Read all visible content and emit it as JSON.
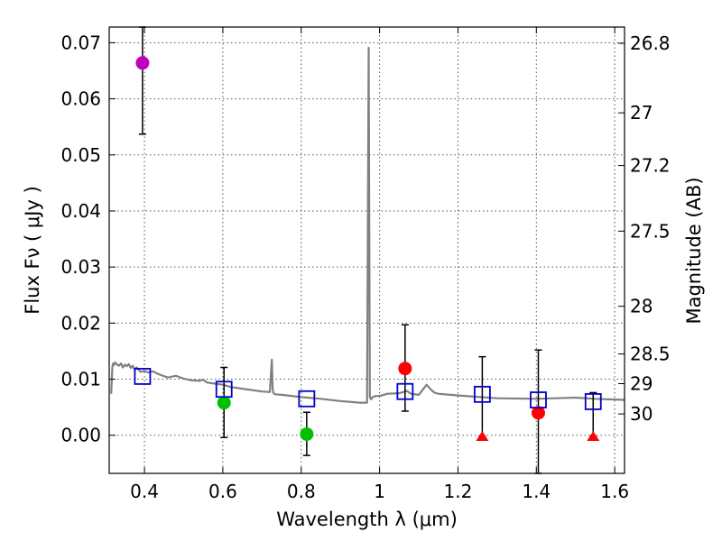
{
  "chart_data": {
    "type": "scatter",
    "xlabel": "Wavelength  λ (μm)",
    "ylabel": "Flux  Fν  ( μJy )",
    "ylabel_right": "Magnitude (AB)",
    "xlim": [
      0.31,
      1.625
    ],
    "ylim": [
      -0.0068,
      0.0728
    ],
    "grid": true,
    "x_ticks": [
      0.4,
      0.6,
      0.8,
      1.0,
      1.2,
      1.4,
      1.6
    ],
    "x_tick_labels": [
      "0.4",
      "0.6",
      "0.8",
      "1",
      "1.2",
      "1.4",
      "1.6"
    ],
    "y_ticks": [
      0.0,
      0.01,
      0.02,
      0.03,
      0.04,
      0.05,
      0.06,
      0.07
    ],
    "y_tick_labels": [
      "0.00",
      "0.01",
      "0.02",
      "0.03",
      "0.04",
      "0.05",
      "0.06",
      "0.07"
    ],
    "right_axis_ticks": [
      {
        "label": "26.8",
        "flux": 0.0699
      },
      {
        "label": "27",
        "flux": 0.0575
      },
      {
        "label": "27.2",
        "flux": 0.0481
      },
      {
        "label": "27.5",
        "flux": 0.0364
      },
      {
        "label": "28",
        "flux": 0.023
      },
      {
        "label": "28.5",
        "flux": 0.0145
      },
      {
        "label": "29",
        "flux": 0.0092
      },
      {
        "label": "30",
        "flux": 0.0038
      }
    ],
    "series": [
      {
        "name": "model-spectrum",
        "kind": "line",
        "color": "#808080",
        "x": [
          0.315,
          0.318,
          0.32,
          0.322,
          0.325,
          0.33,
          0.335,
          0.34,
          0.345,
          0.35,
          0.355,
          0.36,
          0.365,
          0.37,
          0.375,
          0.38,
          0.39,
          0.4,
          0.41,
          0.42,
          0.44,
          0.46,
          0.48,
          0.5,
          0.52,
          0.54,
          0.55,
          0.56,
          0.58,
          0.6,
          0.62,
          0.65,
          0.7,
          0.72,
          0.725,
          0.727,
          0.729,
          0.731,
          0.735,
          0.75,
          0.8,
          0.85,
          0.9,
          0.95,
          0.968,
          0.972,
          0.975,
          0.978,
          0.982,
          0.99,
          1.0,
          1.02,
          1.05,
          1.07,
          1.08,
          1.1,
          1.12,
          1.13,
          1.14,
          1.15,
          1.2,
          1.3,
          1.4,
          1.5,
          1.55,
          1.625
        ],
        "y": [
          0.0074,
          0.0122,
          0.0128,
          0.0125,
          0.013,
          0.0126,
          0.0124,
          0.0128,
          0.0121,
          0.0126,
          0.0123,
          0.0127,
          0.012,
          0.0124,
          0.0117,
          0.0121,
          0.0113,
          0.0115,
          0.0112,
          0.0114,
          0.0108,
          0.0103,
          0.0106,
          0.0101,
          0.0098,
          0.0097,
          0.0099,
          0.0094,
          0.0092,
          0.009,
          0.0086,
          0.0083,
          0.0078,
          0.0077,
          0.0135,
          0.0082,
          0.0076,
          0.0074,
          0.0073,
          0.0072,
          0.0068,
          0.0065,
          0.0061,
          0.0058,
          0.0058,
          0.0691,
          0.0068,
          0.0064,
          0.0068,
          0.007,
          0.007,
          0.0074,
          0.0075,
          0.0079,
          0.0074,
          0.0072,
          0.009,
          0.0082,
          0.0076,
          0.0074,
          0.0071,
          0.0066,
          0.0065,
          0.0067,
          0.0065,
          0.0063
        ]
      },
      {
        "name": "magenta-point",
        "kind": "marker",
        "marker": "circle",
        "color": "#bf00bf",
        "x": [
          0.395
        ],
        "y": [
          0.0664
        ],
        "yerr_low": [
          0.0537
        ],
        "yerr_high": [
          0.0728
        ]
      },
      {
        "name": "green-points",
        "kind": "marker",
        "marker": "circle",
        "color": "#00c000",
        "x": [
          0.603,
          0.814
        ],
        "y": [
          0.0058,
          0.0002
        ],
        "yerr_low": [
          -0.0004,
          -0.0036
        ],
        "yerr_high": [
          0.0121,
          0.0041
        ]
      },
      {
        "name": "red-points",
        "kind": "marker",
        "marker": "circle",
        "color": "#ff0000",
        "x": [
          1.065,
          1.405
        ],
        "y": [
          0.0119,
          0.004
        ],
        "yerr_low": [
          0.0043,
          -0.0068
        ],
        "yerr_high": [
          0.0197,
          0.0152
        ]
      },
      {
        "name": "red-upper-limits",
        "kind": "marker",
        "marker": "triangle",
        "color": "#ff0000",
        "x": [
          1.262,
          1.545
        ],
        "y": [
          -0.0002,
          -0.0002
        ],
        "yerr_low": [
          -0.0002,
          -0.0002
        ],
        "yerr_high": [
          0.014,
          0.0076
        ]
      },
      {
        "name": "model-bandpass-fluxes",
        "kind": "marker",
        "marker": "square",
        "color": "#0000cc",
        "x": [
          0.395,
          0.603,
          0.814,
          1.065,
          1.262,
          1.405,
          1.545
        ],
        "y": [
          0.0105,
          0.0082,
          0.0065,
          0.0078,
          0.0073,
          0.0063,
          0.006
        ]
      }
    ]
  }
}
